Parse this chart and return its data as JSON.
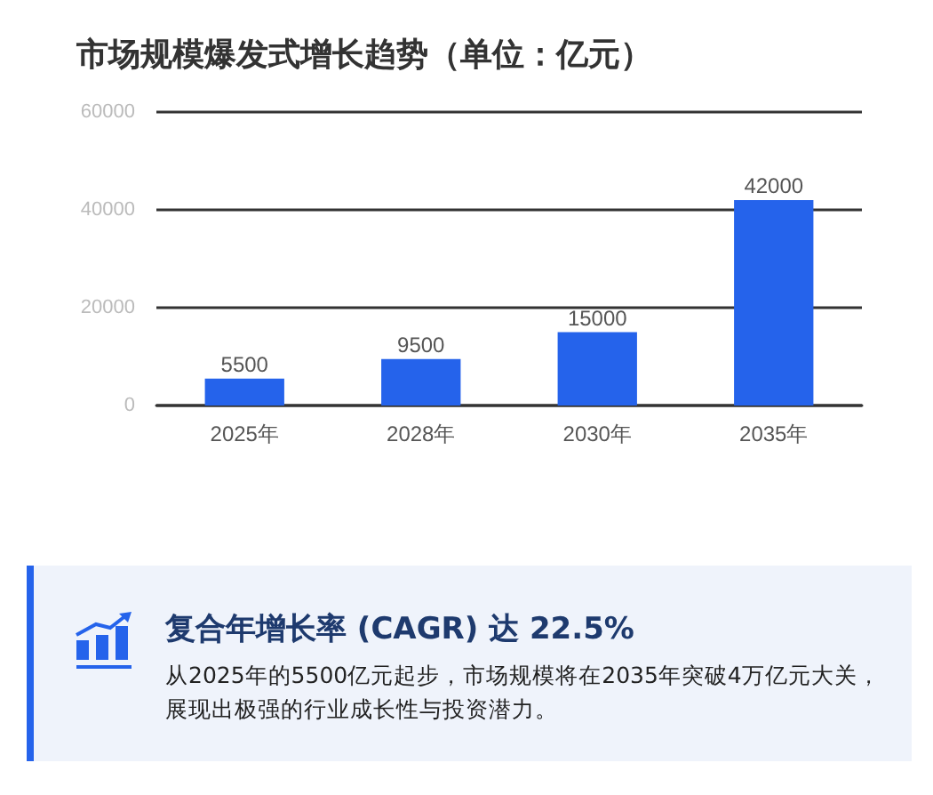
{
  "chart_data": {
    "type": "bar",
    "title": "市场规模爆发式增长趋势（单位：亿元）",
    "categories": [
      "2025年",
      "2028年",
      "2030年",
      "2035年"
    ],
    "values": [
      5500,
      9500,
      15000,
      42000
    ],
    "color": "#2563eb",
    "ylim": [
      0,
      60000
    ],
    "yticks": [
      0,
      20000,
      40000,
      60000
    ],
    "grid": "y",
    "data_labels": true,
    "annotations": [
      "复合年增长率 (CAGR) 达 22.5%",
      "从2025年的5500亿元起步，市场规模将在2035年突破4万亿元大关，展现出极强的行业成长性与投资潜力。"
    ]
  }
}
